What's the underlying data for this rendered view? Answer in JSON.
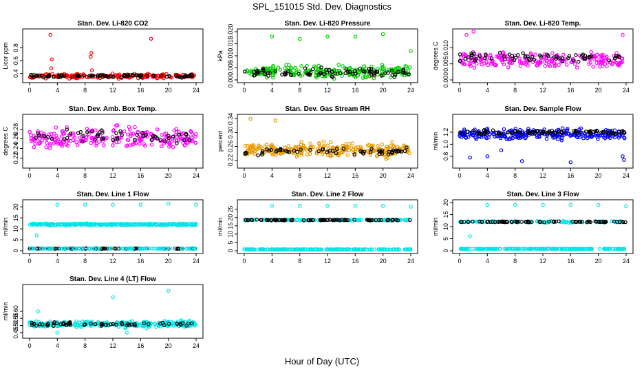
{
  "title": "SPL_151015  Std. Dev. Diagnostics",
  "xlabel": "Hour of Day (UTC)",
  "chart_data": [
    {
      "type": "scatter",
      "title": "Stan. Dev. Li-820 CO2",
      "ylabel": "Licor ppm",
      "xlim": [
        0,
        24
      ],
      "ylim": [
        0.3,
        1.05
      ],
      "xticks": [
        0,
        4,
        8,
        12,
        16,
        20,
        24
      ],
      "yticks": [
        0.4,
        0.6,
        0.8
      ],
      "ytick_labels": [
        "0.4",
        "0.6",
        "0.8"
      ],
      "series": [
        {
          "color": "#ff0000",
          "center": 0.36,
          "spread": 0.05,
          "n": 200,
          "outliers": [
            [
              3,
              1.0
            ],
            [
              3.1,
              0.48
            ],
            [
              3.2,
              0.62
            ],
            [
              8.8,
              0.66
            ],
            [
              8.9,
              0.72
            ],
            [
              17.5,
              0.94
            ],
            [
              9.0,
              0.45
            ]
          ]
        },
        {
          "color": "#000000",
          "center": 0.36,
          "spread": 0.035,
          "n": 80,
          "outliers": []
        }
      ]
    },
    {
      "type": "scatter",
      "title": "Stan. Dev. Li-820 Pressure",
      "ylabel": "kPa",
      "xlim": [
        0,
        24
      ],
      "ylim": [
        0,
        0.02
      ],
      "xticks": [
        0,
        4,
        8,
        12,
        16,
        20,
        24
      ],
      "yticks": [
        0,
        0.005,
        0.01,
        0.015,
        0.02
      ],
      "ytick_labels": [
        "0.000",
        "0.005",
        "0.010",
        "0.015",
        "0.020"
      ],
      "series": [
        {
          "color": "#00cc00",
          "center": 0.0035,
          "spread": 0.0035,
          "n": 220,
          "outliers": [
            [
              4,
              0.018
            ],
            [
              8,
              0.017
            ],
            [
              12,
              0.018
            ],
            [
              16,
              0.018
            ],
            [
              20,
              0.019
            ],
            [
              24,
              0.012
            ]
          ]
        },
        {
          "color": "#000000",
          "center": 0.003,
          "spread": 0.0025,
          "n": 80,
          "outliers": []
        }
      ]
    },
    {
      "type": "scatter",
      "title": "Stan. Dev. Li-820 Temp.",
      "ylabel": "degrees C",
      "xlim": [
        0,
        24
      ],
      "ylim": [
        0,
        0.015
      ],
      "xticks": [
        0,
        4,
        8,
        12,
        16,
        20,
        24
      ],
      "yticks": [
        0,
        0.005,
        0.01
      ],
      "ytick_labels": [
        "0.000",
        "0.005",
        "0.010"
      ],
      "series": [
        {
          "color": "#ff00ff",
          "center": 0.006,
          "spread": 0.0035,
          "n": 220,
          "outliers": [
            [
              1,
              0.014
            ],
            [
              2,
              0.015
            ],
            [
              23.5,
              0.014
            ]
          ]
        },
        {
          "color": "#000000",
          "center": 0.007,
          "spread": 0.002,
          "n": 60,
          "outliers": []
        }
      ]
    },
    {
      "type": "scatter",
      "title": "Stan. Dev. Amb. Box Temp.",
      "ylabel": "degrees C",
      "xlim": [
        0,
        24
      ],
      "ylim": [
        0.205,
        0.305
      ],
      "xticks": [
        0,
        4,
        8,
        12,
        16,
        20,
        24
      ],
      "yticks": [
        0.22,
        0.24,
        0.26,
        0.28
      ],
      "ytick_labels": [
        "0.22",
        "0.24",
        "0.26",
        "0.28"
      ],
      "series": [
        {
          "color": "#ff00ff",
          "center": 0.262,
          "spread": 0.03,
          "n": 240,
          "outliers": []
        },
        {
          "color": "#000000",
          "center": 0.265,
          "spread": 0.02,
          "n": 50,
          "outliers": []
        }
      ]
    },
    {
      "type": "scatter",
      "title": "Stan. Dev. Gas Stream RH",
      "ylabel": "percent",
      "xlim": [
        0,
        24
      ],
      "ylim": [
        0.205,
        0.345
      ],
      "xticks": [
        0,
        4,
        8,
        12,
        16,
        20,
        24
      ],
      "yticks": [
        0.22,
        0.26,
        0.3,
        0.34
      ],
      "ytick_labels": [
        "0.22",
        "0.26",
        "0.30",
        "0.34"
      ],
      "series": [
        {
          "color": "#e69900",
          "center": 0.25,
          "spread": 0.03,
          "n": 260,
          "outliers": [
            [
              0.9,
              0.34
            ],
            [
              4.5,
              0.335
            ]
          ]
        },
        {
          "color": "#000000",
          "center": 0.245,
          "spread": 0.015,
          "n": 60,
          "outliers": []
        }
      ]
    },
    {
      "type": "scatter",
      "title": "Stan. Dev. Sample Flow",
      "ylabel": "ml/min",
      "xlim": [
        0,
        24
      ],
      "ylim": [
        0.65,
        1.45
      ],
      "xticks": [
        0,
        4,
        8,
        12,
        16,
        20,
        24
      ],
      "yticks": [
        0.8,
        1.0,
        1.2
      ],
      "ytick_labels": [
        "0.8",
        "1.0",
        "1.2"
      ],
      "series": [
        {
          "color": "#0000ff",
          "center": 1.17,
          "spread": 0.12,
          "n": 260,
          "outliers": [
            [
              1.5,
              0.78
            ],
            [
              4,
              0.8
            ],
            [
              6,
              0.9
            ],
            [
              9,
              0.72
            ],
            [
              16,
              0.7
            ],
            [
              23.5,
              0.8
            ],
            [
              23.7,
              0.74
            ]
          ]
        },
        {
          "color": "#000000",
          "center": 1.2,
          "spread": 0.05,
          "n": 80,
          "outliers": []
        }
      ]
    },
    {
      "type": "scatter",
      "title": "Stan. Dev. Line 1 Flow",
      "ylabel": "ml/min",
      "xlim": [
        0,
        24
      ],
      "ylim": [
        0,
        22
      ],
      "xticks": [
        0,
        4,
        8,
        12,
        16,
        20,
        24
      ],
      "yticks": [
        0,
        5,
        10,
        15,
        20
      ],
      "ytick_labels": [
        "0",
        "5",
        "10",
        "15",
        "20"
      ],
      "series": [
        {
          "color": "#00e5e5",
          "center": 12,
          "spread": 0.6,
          "n": 300,
          "outliers": [
            [
              4,
              21
            ],
            [
              8,
              21
            ],
            [
              12,
              21
            ],
            [
              16,
              21
            ],
            [
              20,
              21.5
            ],
            [
              24,
              21
            ],
            [
              1,
              7
            ]
          ]
        },
        {
          "color": "#000000",
          "center": 1,
          "spread": 0.2,
          "n": 90,
          "outliers": []
        },
        {
          "color": "#00e5e5",
          "center": 1,
          "spread": 0.15,
          "n": 100,
          "outliers": []
        }
      ]
    },
    {
      "type": "scatter",
      "title": "Stan. Dev. Line 2 Flow",
      "ylabel": "ml/min",
      "xlim": [
        0,
        24
      ],
      "ylim": [
        0,
        29
      ],
      "xticks": [
        0,
        4,
        8,
        12,
        16,
        20,
        24
      ],
      "yticks": [
        0,
        5,
        10,
        15,
        20,
        25
      ],
      "ytick_labels": [
        "0",
        "5",
        "10",
        "15",
        "20",
        "25"
      ],
      "series": [
        {
          "color": "#00e5e5",
          "center": 18.5,
          "spread": 0.5,
          "n": 120,
          "outliers": [
            [
              4,
              27
            ],
            [
              8,
              27
            ],
            [
              12,
              27
            ],
            [
              16,
              27
            ],
            [
              20,
              27
            ],
            [
              24,
              26.5
            ]
          ]
        },
        {
          "color": "#000000",
          "center": 18.5,
          "spread": 0.4,
          "n": 80,
          "outliers": []
        },
        {
          "color": "#00e5e5",
          "center": 0.8,
          "spread": 0.2,
          "n": 200,
          "outliers": []
        }
      ]
    },
    {
      "type": "scatter",
      "title": "Stan. Dev. Line 3 Flow",
      "ylabel": "ml/min",
      "xlim": [
        0,
        24
      ],
      "ylim": [
        0,
        20
      ],
      "xticks": [
        0,
        4,
        8,
        12,
        16,
        20,
        24
      ],
      "yticks": [
        0,
        5,
        10,
        15,
        20
      ],
      "ytick_labels": [
        "0",
        "5",
        "10",
        "15",
        "20"
      ],
      "series": [
        {
          "color": "#00e5e5",
          "center": 12,
          "spread": 0.5,
          "n": 120,
          "outliers": [
            [
              4,
              19
            ],
            [
              8,
              19
            ],
            [
              12,
              19
            ],
            [
              16,
              19
            ],
            [
              20,
              19
            ],
            [
              24,
              18.5
            ],
            [
              1.5,
              6
            ]
          ]
        },
        {
          "color": "#000000",
          "center": 12,
          "spread": 0.3,
          "n": 80,
          "outliers": []
        },
        {
          "color": "#00e5e5",
          "center": 0.8,
          "spread": 0.15,
          "n": 200,
          "outliers": []
        }
      ]
    },
    {
      "type": "scatter",
      "title": "Stan. Dev. Line 4 (LT) Flow",
      "ylabel": "ml/min",
      "xlim": [
        0,
        24
      ],
      "ylim": [
        0.43,
        0.77
      ],
      "xticks": [
        0,
        4,
        8,
        12,
        16,
        20,
        24
      ],
      "yticks": [
        0.45,
        0.5,
        0.55,
        0.6
      ],
      "ytick_labels": [
        "0.45",
        "0.50",
        "0.55",
        "0.60"
      ],
      "series": [
        {
          "color": "#00e5e5",
          "center": 0.51,
          "spread": 0.03,
          "n": 280,
          "outliers": [
            [
              1.2,
              0.6
            ],
            [
              12,
              0.7
            ],
            [
              20,
              0.745
            ],
            [
              4,
              0.45
            ],
            [
              14,
              0.45
            ]
          ]
        },
        {
          "color": "#000000",
          "center": 0.51,
          "spread": 0.02,
          "n": 60,
          "outliers": []
        }
      ]
    }
  ]
}
